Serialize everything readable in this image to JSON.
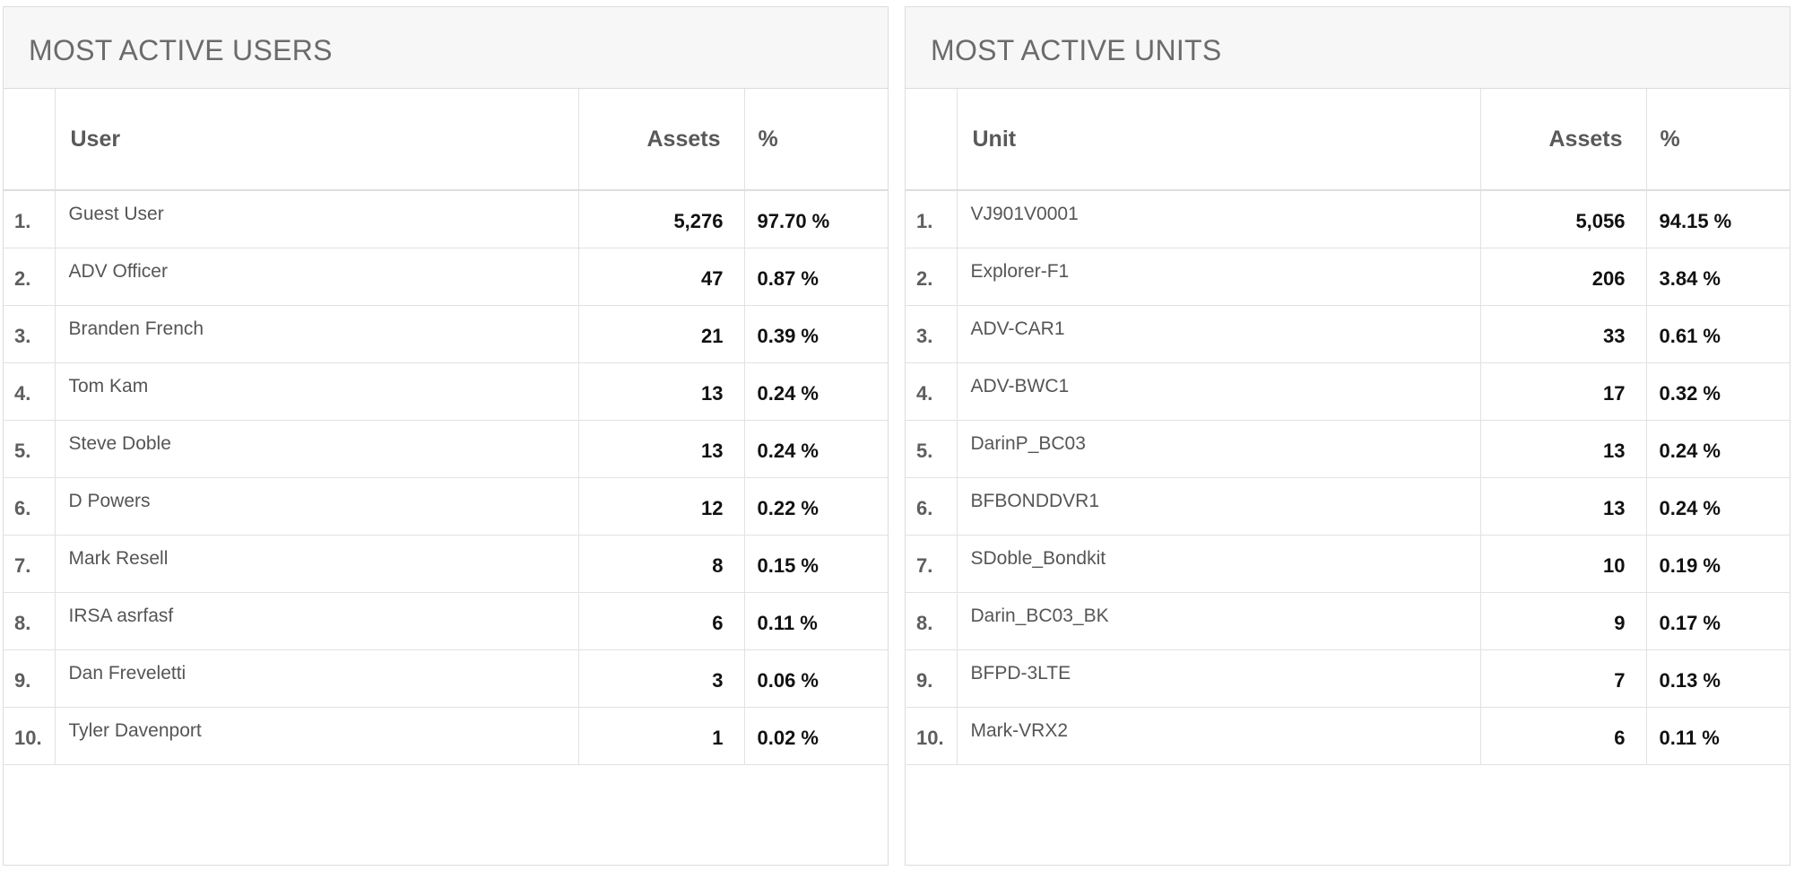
{
  "users_panel": {
    "title": "MOST ACTIVE USERS",
    "columns": {
      "name": "User",
      "assets": "Assets",
      "pct": "%"
    },
    "rows": [
      {
        "rank": "1.",
        "name": "Guest User",
        "assets": "5,276",
        "pct": "97.70 %"
      },
      {
        "rank": "2.",
        "name": "ADV Officer",
        "assets": "47",
        "pct": "0.87 %"
      },
      {
        "rank": "3.",
        "name": "Branden French",
        "assets": "21",
        "pct": "0.39 %"
      },
      {
        "rank": "4.",
        "name": "Tom Kam",
        "assets": "13",
        "pct": "0.24 %"
      },
      {
        "rank": "5.",
        "name": "Steve Doble",
        "assets": "13",
        "pct": "0.24 %"
      },
      {
        "rank": "6.",
        "name": "D Powers",
        "assets": "12",
        "pct": "0.22 %"
      },
      {
        "rank": "7.",
        "name": "Mark Resell",
        "assets": "8",
        "pct": "0.15 %"
      },
      {
        "rank": "8.",
        "name": "IRSA asrfasf",
        "assets": "6",
        "pct": "0.11 %"
      },
      {
        "rank": "9.",
        "name": "Dan Freveletti",
        "assets": "3",
        "pct": "0.06 %"
      },
      {
        "rank": "10.",
        "name": "Tyler Davenport",
        "assets": "1",
        "pct": "0.02 %"
      }
    ]
  },
  "units_panel": {
    "title": "MOST ACTIVE UNITS",
    "columns": {
      "name": "Unit",
      "assets": "Assets",
      "pct": "%"
    },
    "rows": [
      {
        "rank": "1.",
        "name": "VJ901V0001",
        "assets": "5,056",
        "pct": "94.15 %"
      },
      {
        "rank": "2.",
        "name": "Explorer-F1",
        "assets": "206",
        "pct": "3.84 %"
      },
      {
        "rank": "3.",
        "name": "ADV-CAR1",
        "assets": "33",
        "pct": "0.61 %"
      },
      {
        "rank": "4.",
        "name": "ADV-BWC1",
        "assets": "17",
        "pct": "0.32 %"
      },
      {
        "rank": "5.",
        "name": "DarinP_BC03",
        "assets": "13",
        "pct": "0.24 %"
      },
      {
        "rank": "6.",
        "name": "BFBONDDVR1",
        "assets": "13",
        "pct": "0.24 %"
      },
      {
        "rank": "7.",
        "name": "SDoble_Bondkit",
        "assets": "10",
        "pct": "0.19 %"
      },
      {
        "rank": "8.",
        "name": "Darin_BC03_BK",
        "assets": "9",
        "pct": "0.17 %"
      },
      {
        "rank": "9.",
        "name": "BFPD-3LTE",
        "assets": "7",
        "pct": "0.13 %"
      },
      {
        "rank": "10.",
        "name": "Mark-VRX2",
        "assets": "6",
        "pct": "0.11 %"
      }
    ]
  }
}
